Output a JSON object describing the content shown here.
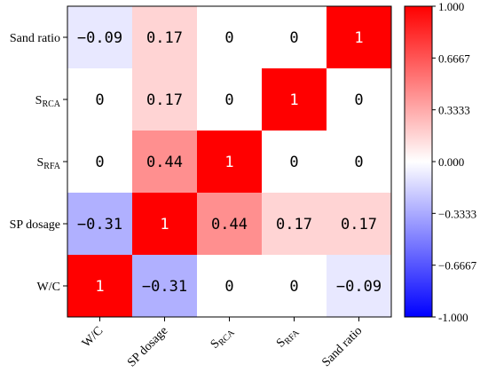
{
  "chart_data": {
    "type": "heatmap",
    "title": "",
    "xlabel": "",
    "ylabel": "",
    "x_categories": [
      {
        "main": "W/C",
        "sub": ""
      },
      {
        "main": "SP dosage",
        "sub": ""
      },
      {
        "main": "S",
        "sub": "RCA"
      },
      {
        "main": "S",
        "sub": "RFA"
      },
      {
        "main": "Sand ratio",
        "sub": ""
      }
    ],
    "y_categories_top_to_bottom": [
      {
        "main": "Sand ratio",
        "sub": ""
      },
      {
        "main": "S",
        "sub": "RCA"
      },
      {
        "main": "S",
        "sub": "RFA"
      },
      {
        "main": "SP dosage",
        "sub": ""
      },
      {
        "main": "W/C",
        "sub": ""
      }
    ],
    "cell_labels_top_to_bottom": [
      [
        "−0.09",
        "0.17",
        "0",
        "0",
        "1"
      ],
      [
        "0",
        "0.17",
        "0",
        "1",
        "0"
      ],
      [
        "0",
        "0.44",
        "1",
        "0",
        "0"
      ],
      [
        "−0.31",
        "1",
        "0.44",
        "0.17",
        "0.17"
      ],
      [
        "1",
        "−0.31",
        "0",
        "0",
        "−0.09"
      ]
    ],
    "values_top_to_bottom": [
      [
        -0.09,
        0.17,
        0,
        0,
        1
      ],
      [
        0,
        0.17,
        0,
        1,
        0
      ],
      [
        0,
        0.44,
        1,
        0,
        0
      ],
      [
        -0.31,
        1,
        0.44,
        0.17,
        0.17
      ],
      [
        1,
        -0.31,
        0,
        0,
        -0.09
      ]
    ],
    "colorbar": {
      "range": [
        -1,
        1
      ],
      "colormap": "bwr",
      "ticks": [
        1.0,
        0.6667,
        0.3333,
        0.0,
        -0.3333,
        -0.6667,
        -1.0
      ],
      "tick_labels": [
        "1.000",
        "0.6667",
        "0.3333",
        "0.000",
        "−0.3333",
        "−0.6667",
        "-1.000"
      ]
    },
    "colors": {
      "low": "#0000ff",
      "mid": "#ffffff",
      "high": "#ff0000"
    }
  }
}
